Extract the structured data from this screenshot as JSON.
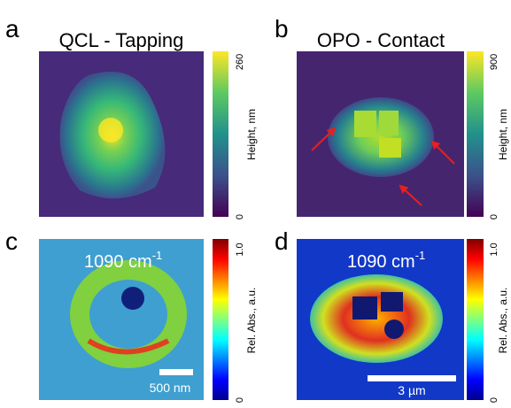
{
  "panels": [
    {
      "letter": "a",
      "title": "QCL - Tapping",
      "colorbar": {
        "label": "Height, nm",
        "top": "260",
        "bottom": "0"
      }
    },
    {
      "letter": "b",
      "title": "OPO - Contact",
      "colorbar": {
        "label": "Height, nm",
        "top": "900",
        "bottom": "0"
      }
    },
    {
      "letter": "c",
      "annotation": {
        "text": "1090 cm",
        "sup": "-1"
      },
      "scale_bar": "500 nm",
      "colorbar": {
        "label": "Rel. Abs., a.u.",
        "top": "1.0",
        "bottom": "0"
      }
    },
    {
      "letter": "d",
      "annotation": {
        "text": "1090 cm",
        "sup": "-1"
      },
      "scale_bar": "3 µm",
      "colorbar": {
        "label": "Rel. Abs., a.u.",
        "top": "1.0",
        "bottom": "0"
      }
    }
  ]
}
